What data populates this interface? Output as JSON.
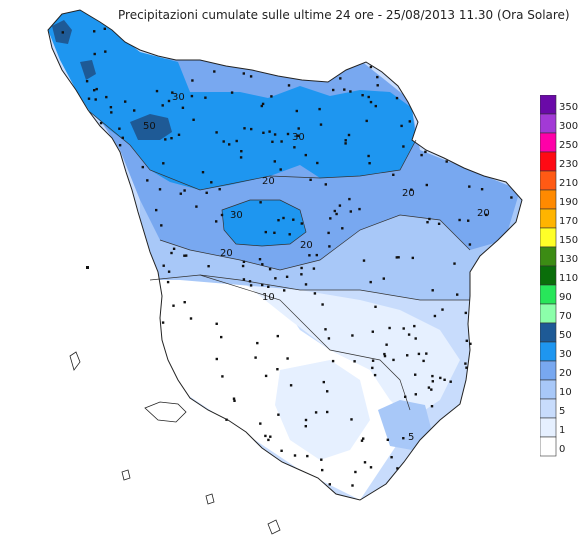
{
  "title": "Precipitazioni cumulate sulle ultime 24 ore - 25/08/2013 11.30 (Ora Solare)",
  "legend": {
    "unit": "",
    "classes": [
      {
        "label": "350",
        "color": "#6a0aa8"
      },
      {
        "label": "300",
        "color": "#a23ad6"
      },
      {
        "label": "250",
        "color": "#ff00a8"
      },
      {
        "label": "230",
        "color": "#ff0a14"
      },
      {
        "label": "210",
        "color": "#ff5a14"
      },
      {
        "label": "190",
        "color": "#ff8a00"
      },
      {
        "label": "170",
        "color": "#ffb400"
      },
      {
        "label": "150",
        "color": "#ffff28"
      },
      {
        "label": "130",
        "color": "#3c8c14"
      },
      {
        "label": "110",
        "color": "#0a6e0a"
      },
      {
        "label": "90",
        "color": "#28e65a"
      },
      {
        "label": "70",
        "color": "#8cffaa"
      },
      {
        "label": "50",
        "color": "#1e5a96"
      },
      {
        "label": "30",
        "color": "#1e96f0"
      },
      {
        "label": "20",
        "color": "#78a8f0"
      },
      {
        "label": "10",
        "color": "#a8c8f8"
      },
      {
        "label": "5",
        "color": "#c8dcfc"
      },
      {
        "label": "1",
        "color": "#e6f0ff"
      },
      {
        "label": "0",
        "color": "#ffffff"
      }
    ]
  },
  "isoline_labels": [
    "50",
    "30",
    "30",
    "30",
    "20",
    "20",
    "20",
    "20",
    "20",
    "10",
    "5"
  ],
  "colors": {
    "zone_50": "#1e5a96",
    "zone_30": "#1e96f0",
    "zone_20": "#78a8f0",
    "zone_10": "#a8c8f8",
    "zone_5": "#c8dcfc",
    "zone_1": "#e6f0ff",
    "zone_0": "#ffffff",
    "outline": "#222222"
  }
}
